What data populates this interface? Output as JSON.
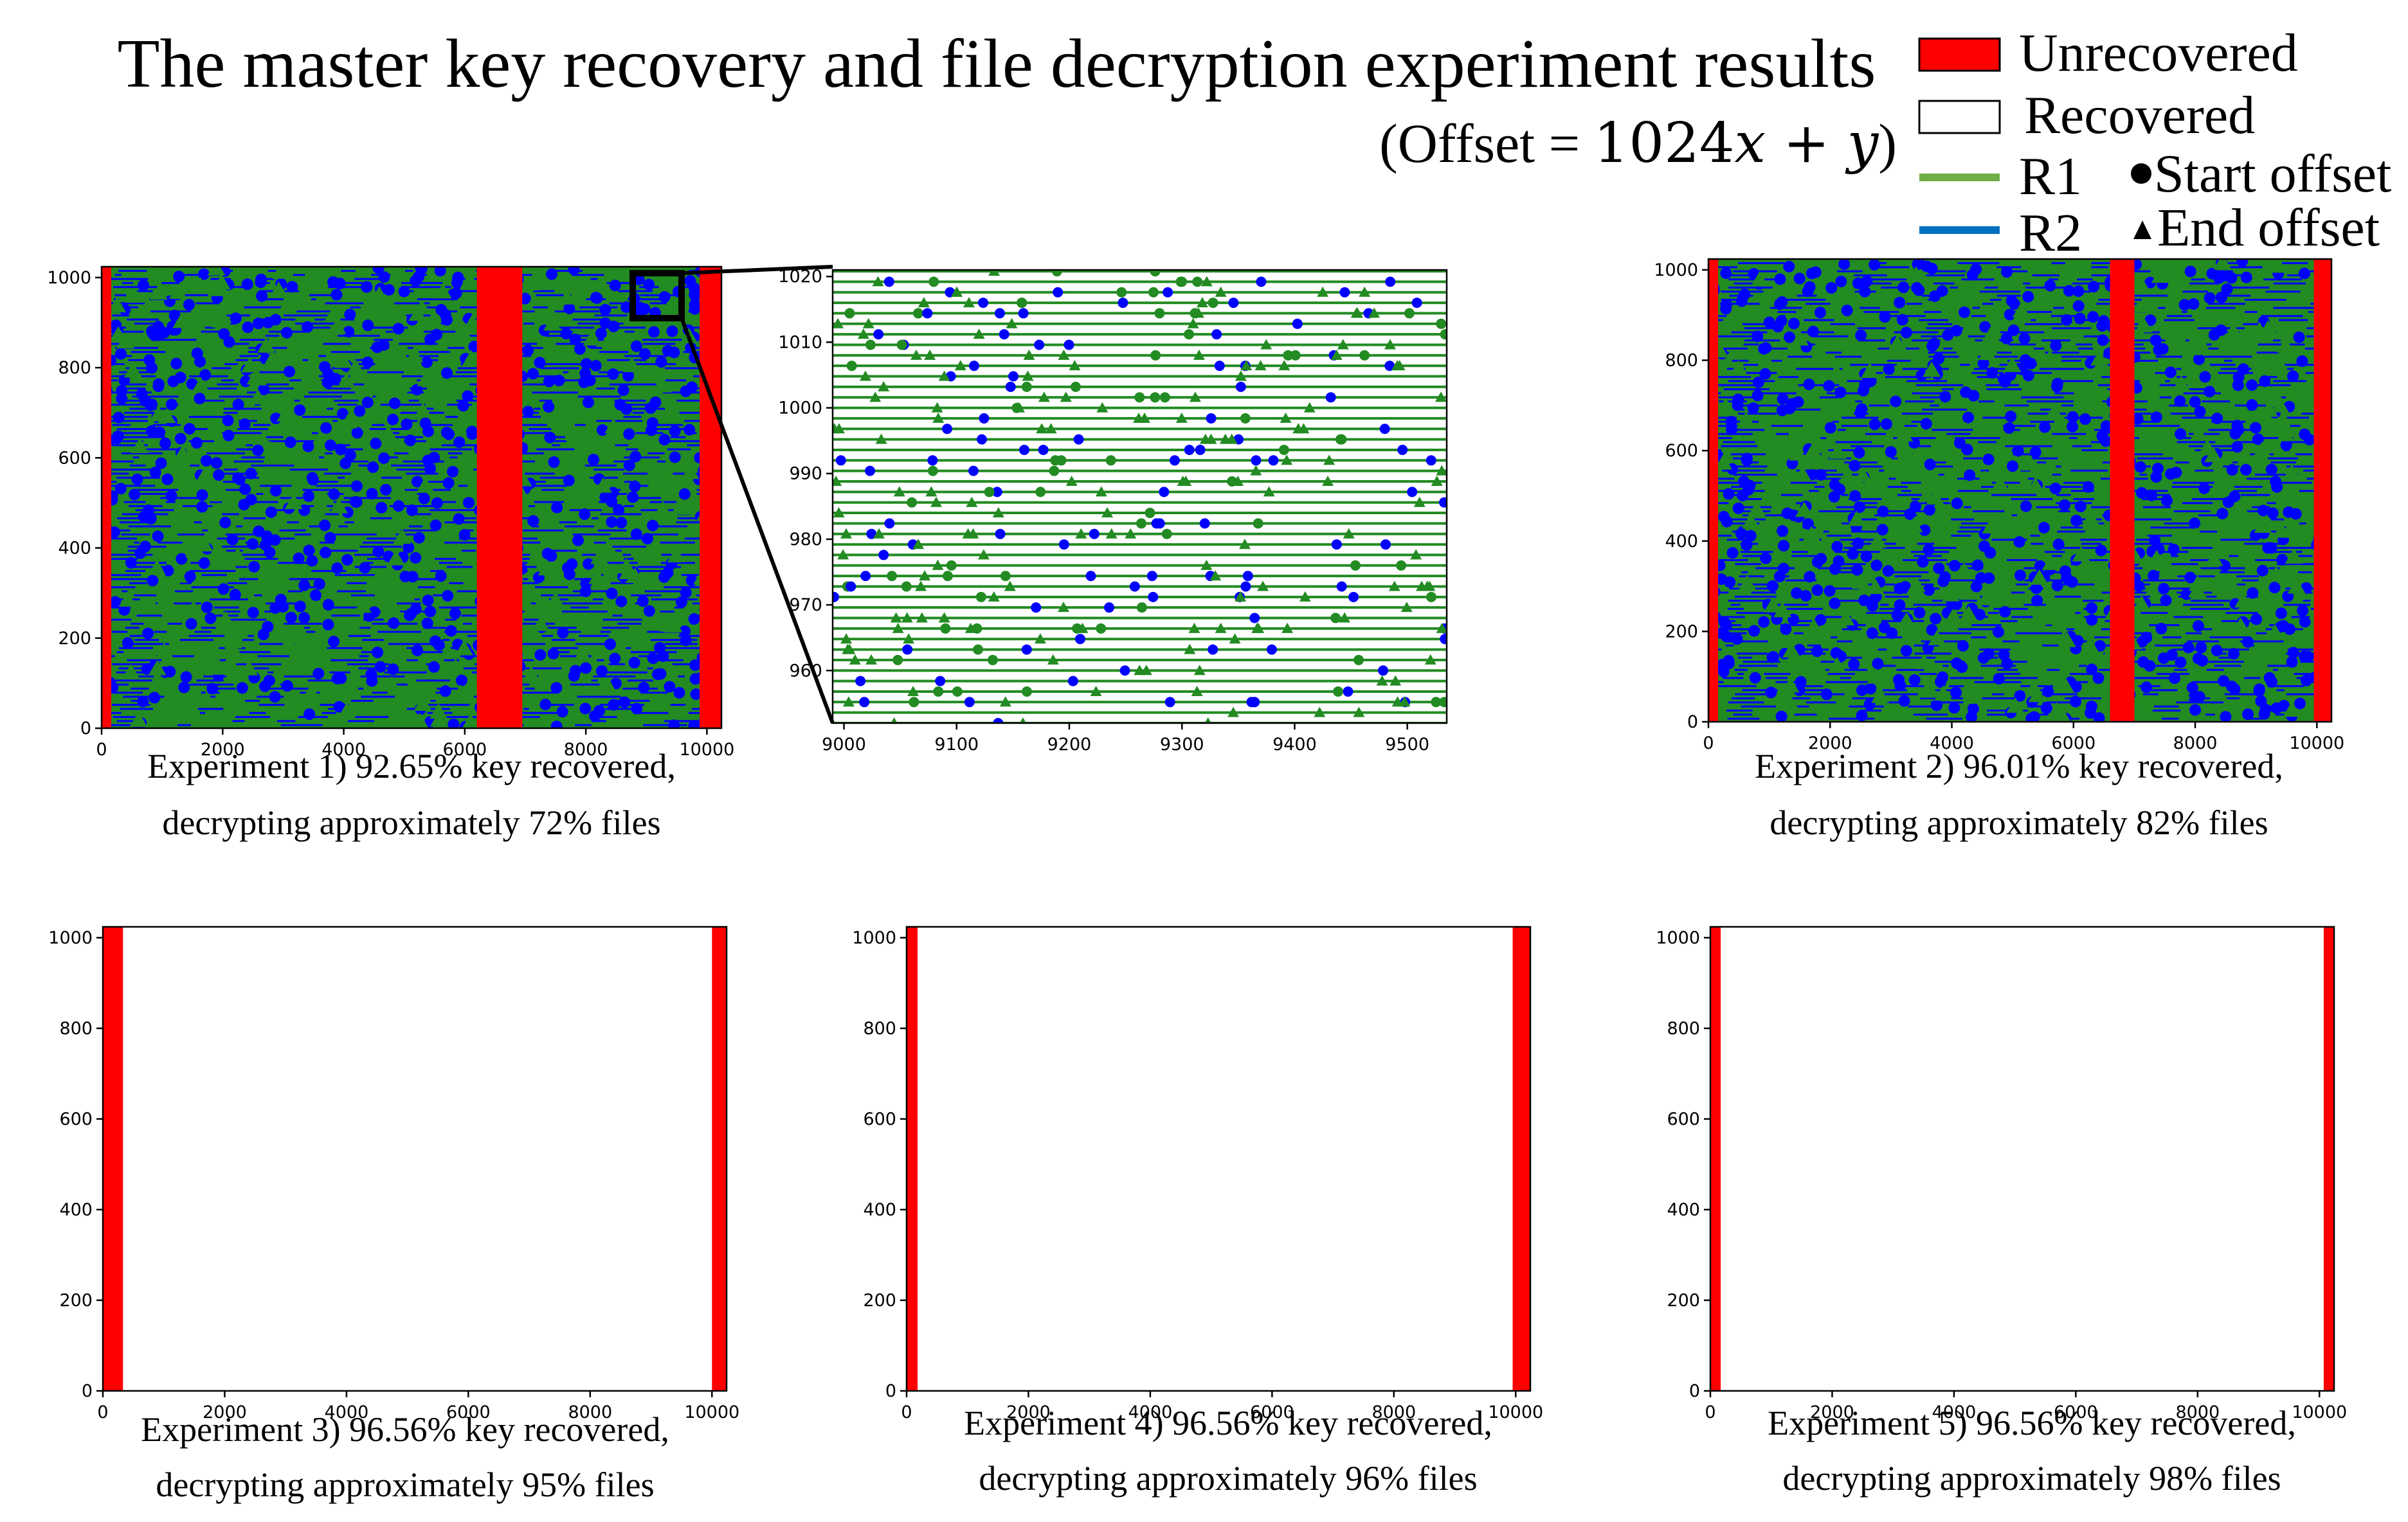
{
  "title": "The master key recovery and file decryption experiment results",
  "subtitle": "(Offset = 1024x + y)",
  "legend": {
    "unrecovered": "Unrecovered",
    "recovered": "Recovered",
    "r1": "R1",
    "r2": "R2",
    "start": "Start offset",
    "end": "End offset"
  },
  "colors": {
    "unrecovered": "#ff0000",
    "recovered": "#ffffff",
    "r1": "#228b22",
    "r2": "#0000ff",
    "r1_legend": "#70ad47",
    "r2_legend": "#0070c0"
  },
  "chart_data": [
    {
      "id": "exp1",
      "type": "scatter",
      "caption": [
        "Experiment 1) 92.65% key recovered,",
        "decrypting approximately 72% files"
      ],
      "xlim": [
        0,
        10240
      ],
      "ylim": [
        0,
        1024
      ],
      "xticks": [
        0,
        2000,
        4000,
        6000,
        8000,
        10000
      ],
      "yticks": [
        0,
        200,
        400,
        600,
        800,
        1000
      ],
      "unrecovered_x": [
        [
          0,
          160
        ],
        [
          6200,
          6950
        ],
        [
          9880,
          10240
        ]
      ],
      "fill": "mixed"
    },
    {
      "id": "zoom",
      "type": "scatter",
      "caption": [],
      "xlim": [
        8990,
        9535
      ],
      "ylim": [
        952,
        1021
      ],
      "xticks": [
        9000,
        9100,
        9200,
        9300,
        9400,
        9500
      ],
      "yticks": [
        960,
        970,
        980,
        990,
        1000,
        1010,
        1020
      ],
      "unrecovered_x": [],
      "fill": "lines"
    },
    {
      "id": "exp2",
      "type": "scatter",
      "caption": [
        "Experiment 2) 96.01% key recovered,",
        "decrypting approximately 82% files"
      ],
      "xlim": [
        0,
        10240
      ],
      "ylim": [
        0,
        1024
      ],
      "xticks": [
        0,
        2000,
        4000,
        6000,
        8000,
        10000
      ],
      "yticks": [
        0,
        200,
        400,
        600,
        800,
        1000
      ],
      "unrecovered_x": [
        [
          0,
          160
        ],
        [
          6600,
          7000
        ],
        [
          9950,
          10240
        ]
      ],
      "fill": "mixed"
    },
    {
      "id": "exp3",
      "type": "scatter",
      "caption": [
        "Experiment 3) 96.56% key recovered,",
        "decrypting approximately 95% files"
      ],
      "xlim": [
        0,
        10240
      ],
      "ylim": [
        0,
        1024
      ],
      "xticks": [
        0,
        2000,
        4000,
        6000,
        8000,
        10000
      ],
      "yticks": [
        0,
        200,
        400,
        600,
        800,
        1000
      ],
      "unrecovered_x": [
        [
          0,
          330
        ],
        [
          10000,
          10240
        ]
      ],
      "fill": "none"
    },
    {
      "id": "exp4",
      "type": "scatter",
      "caption": [
        "Experiment 4) 96.56% key recovered,",
        "decrypting approximately 96% files"
      ],
      "xlim": [
        0,
        10240
      ],
      "ylim": [
        0,
        1024
      ],
      "xticks": [
        0,
        2000,
        4000,
        6000,
        8000,
        10000
      ],
      "yticks": [
        0,
        200,
        400,
        600,
        800,
        1000
      ],
      "unrecovered_x": [
        [
          0,
          180
        ],
        [
          9950,
          10240
        ]
      ],
      "fill": "none"
    },
    {
      "id": "exp5",
      "type": "scatter",
      "caption": [
        "Experiment 5) 96.56% key recovered,",
        "decrypting approximately 98% files"
      ],
      "xlim": [
        0,
        10240
      ],
      "ylim": [
        0,
        1024
      ],
      "xticks": [
        0,
        2000,
        4000,
        6000,
        8000,
        10000
      ],
      "yticks": [
        0,
        200,
        400,
        600,
        800,
        1000
      ],
      "unrecovered_x": [
        [
          0,
          170
        ],
        [
          10070,
          10240
        ]
      ],
      "fill": "none"
    }
  ]
}
